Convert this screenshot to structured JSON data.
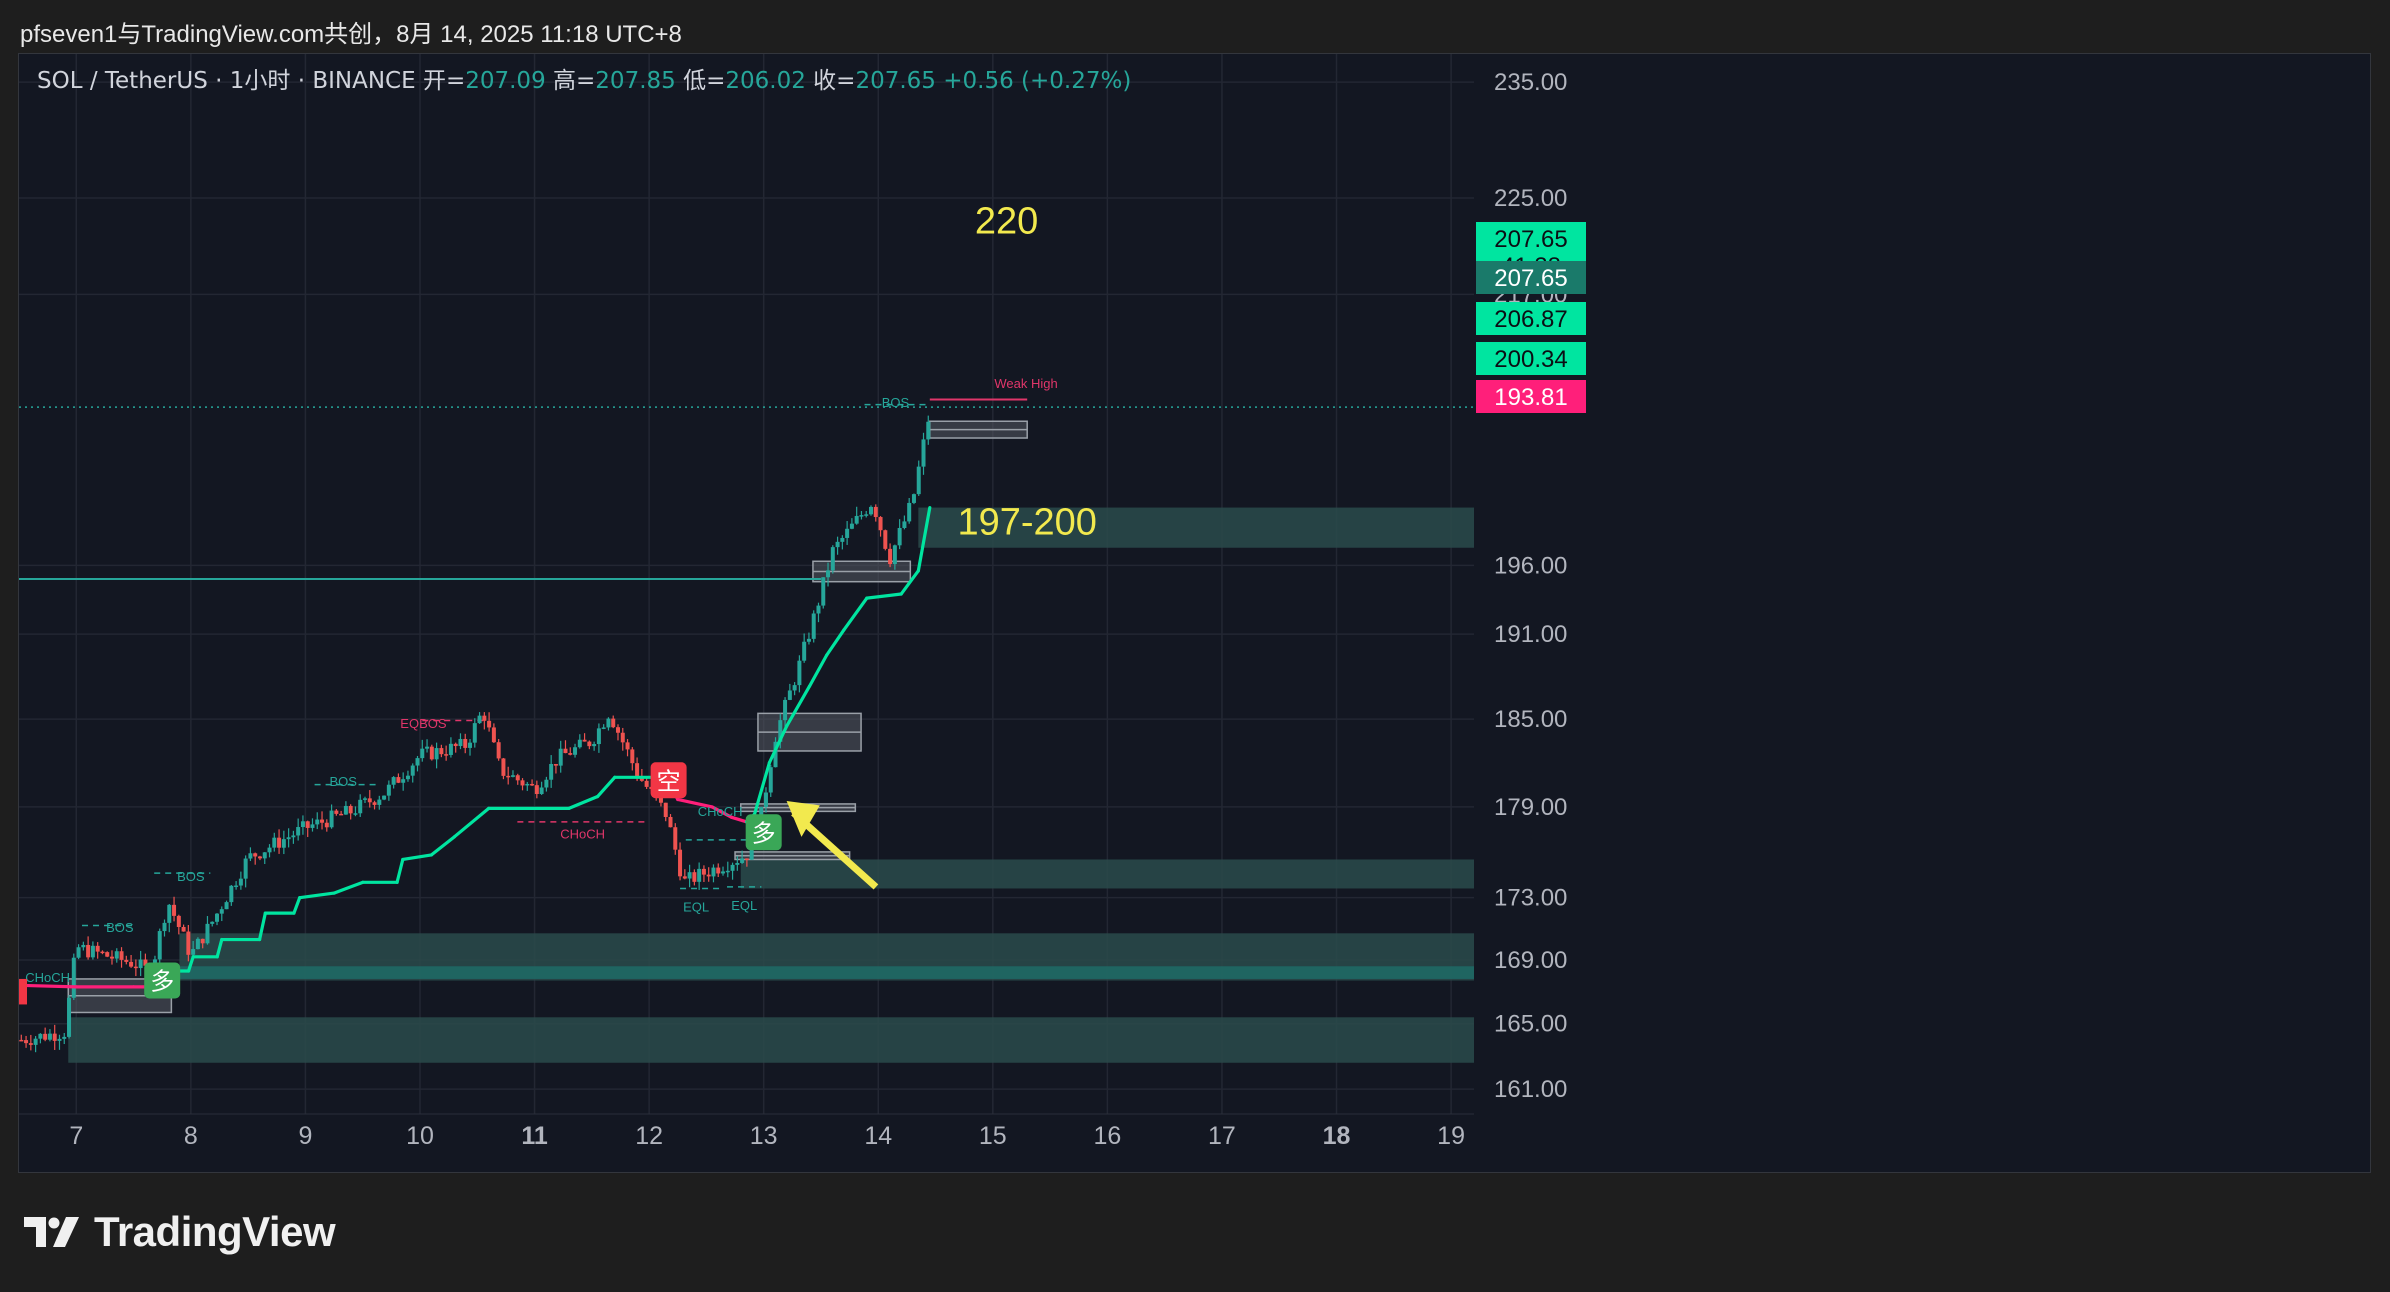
{
  "header": {
    "publish_line": "pfseven1与TradingView.com共创，8月 14, 2025 11:18 UTC+8"
  },
  "footer": {
    "brand": "TradingView"
  },
  "chart_data": {
    "type": "candlestick",
    "symbol_line": {
      "symbol": "SOL / TetherUS · 1小时 · BINANCE",
      "open_label": "开=",
      "open": "207.09",
      "high_label": "高=",
      "high": "207.85",
      "low_label": "低=",
      "low": "206.02",
      "close_label": "收=",
      "close": "207.65",
      "change": "+0.56 (+0.27%)"
    },
    "x_axis": {
      "ticks": [
        "7",
        "8",
        "9",
        "10",
        "11",
        "12",
        "13",
        "14",
        "15",
        "16",
        "17",
        "18",
        "19"
      ],
      "bold_ticks": [
        "11",
        "18"
      ],
      "range": [
        6.5,
        19.2
      ]
    },
    "y_axis": {
      "ticks": [
        "235.00",
        "225.00",
        "217.00",
        "196.00",
        "191.00",
        "185.00",
        "179.00",
        "173.00",
        "169.00",
        "165.00",
        "161.00"
      ],
      "range": [
        159.5,
        237.5
      ],
      "scale": "log"
    },
    "price_tags": [
      {
        "value": 207.65,
        "text": "207.65",
        "sub": "41:38",
        "color": "#00e5a0",
        "text_color": "#0b0e14"
      },
      {
        "value": 207.65,
        "text": "207.65",
        "color": "#1a7a6a",
        "text_color": "#ffffff"
      },
      {
        "value": 206.87,
        "text": "206.87",
        "color": "#00e5a0",
        "text_color": "#0b0e14"
      },
      {
        "value": 200.34,
        "text": "200.34",
        "color": "#00e5a0",
        "text_color": "#0b0e14"
      },
      {
        "value": 193.81,
        "text": "193.81",
        "color": "#ff1f7a",
        "text_color": "#ffffff"
      }
    ],
    "annotations": [
      {
        "text": "220",
        "x": 15.12,
        "y": 222.0,
        "color": "#f2e94e",
        "size": 38
      },
      {
        "text": "197-200",
        "x": 15.3,
        "y": 198.3,
        "color": "#f2e94e",
        "size": 38
      },
      {
        "text": "Weak High",
        "x": 15.29,
        "y": 209.5,
        "color": "#e0366a",
        "size": 13
      },
      {
        "text": "BOS",
        "x": 7.38,
        "y": 170.8,
        "color": "#26a69a",
        "size": 13
      },
      {
        "text": "BOS",
        "x": 8.0,
        "y": 174.1,
        "color": "#26a69a",
        "size": 13
      },
      {
        "text": "BOS",
        "x": 9.33,
        "y": 180.4,
        "color": "#26a69a",
        "size": 13
      },
      {
        "text": "EQBOS",
        "x": 10.03,
        "y": 184.4,
        "color": "#e0366a",
        "size": 13
      },
      {
        "text": "CHoCH",
        "x": 11.42,
        "y": 176.9,
        "color": "#e0366a",
        "size": 13
      },
      {
        "text": "CHoCH",
        "x": 12.62,
        "y": 178.4,
        "color": "#26a69a",
        "size": 13
      },
      {
        "text": "EQL",
        "x": 12.41,
        "y": 172.1,
        "color": "#26a69a",
        "size": 13
      },
      {
        "text": "EQL",
        "x": 12.83,
        "y": 172.2,
        "color": "#26a69a",
        "size": 13
      },
      {
        "text": "BOS",
        "x": 14.15,
        "y": 208.0,
        "color": "#26a69a",
        "size": 13
      },
      {
        "text": "CHoCH",
        "x": 6.75,
        "y": 167.6,
        "color": "#26a69a",
        "size": 13
      }
    ],
    "signals": [
      {
        "text": "多",
        "x": 7.75,
        "y": 167.7,
        "color": "#3aa757"
      },
      {
        "text": "空",
        "x": 12.17,
        "y": 180.8,
        "color": "#f23645"
      },
      {
        "text": "多",
        "x": 13.0,
        "y": 177.3,
        "color": "#3aa757"
      }
    ],
    "zones": [
      {
        "x1": 14.35,
        "x2": 19.2,
        "y1": 197.3,
        "y2": 200.3,
        "color": "#2a4b4b"
      },
      {
        "x1": 12.8,
        "x2": 19.2,
        "y1": 173.6,
        "y2": 175.5,
        "color": "#2a4b4b"
      },
      {
        "x1": 7.9,
        "x2": 19.2,
        "y1": 167.7,
        "y2": 170.7,
        "color": "#2a4b4b"
      },
      {
        "x1": 7.9,
        "x2": 19.2,
        "y1": 167.8,
        "y2": 168.6,
        "color": "#1f6b66"
      },
      {
        "x1": 6.93,
        "x2": 19.2,
        "y1": 162.6,
        "y2": 165.4,
        "color": "#2a4b4b"
      },
      {
        "x1": 6.93,
        "x2": 7.83,
        "y1": 165.7,
        "y2": 167.8,
        "color": "#555a63"
      },
      {
        "x1": 12.95,
        "x2": 13.85,
        "y1": 182.8,
        "y2": 185.4,
        "color": "#555a63"
      },
      {
        "x1": 12.8,
        "x2": 13.8,
        "y1": 178.7,
        "y2": 179.2,
        "color": "#555a63"
      },
      {
        "x1": 12.75,
        "x2": 13.75,
        "y1": 175.5,
        "y2": 176.0,
        "color": "#555a63"
      },
      {
        "x1": 13.43,
        "x2": 14.28,
        "y1": 194.8,
        "y2": 196.3,
        "color": "#555a63"
      },
      {
        "x1": 14.45,
        "x2": 15.3,
        "y1": 205.6,
        "y2": 206.9,
        "color": "#555a63"
      }
    ],
    "levels": [
      {
        "x1": 6.5,
        "x2": 13.5,
        "y": 195.0,
        "color": "#26a69a",
        "width": 2
      },
      {
        "x1": 6.5,
        "x2": 19.2,
        "y": 208.0,
        "color": "#26a69a",
        "width": 1.5,
        "dash": "2,4"
      },
      {
        "x1": 14.45,
        "x2": 15.3,
        "y": 208.6,
        "color": "#e0366a",
        "width": 2
      }
    ],
    "structure_lines": [
      {
        "x1": 7.05,
        "x2": 7.52,
        "y": 171.2,
        "color": "#26a69a"
      },
      {
        "x1": 7.68,
        "x2": 8.17,
        "y": 174.6,
        "color": "#26a69a"
      },
      {
        "x1": 9.08,
        "x2": 9.62,
        "y": 180.5,
        "color": "#26a69a"
      },
      {
        "x1": 10.02,
        "x2": 10.55,
        "y": 184.9,
        "color": "#e0366a"
      },
      {
        "x1": 10.85,
        "x2": 11.98,
        "y": 178.0,
        "color": "#e0366a"
      },
      {
        "x1": 12.32,
        "x2": 12.98,
        "y": 176.8,
        "color": "#26a69a"
      },
      {
        "x1": 12.27,
        "x2": 12.63,
        "y": 173.6,
        "color": "#26a69a"
      },
      {
        "x1": 12.68,
        "x2": 12.98,
        "y": 173.7,
        "color": "#26a69a"
      },
      {
        "x1": 13.88,
        "x2": 14.43,
        "y": 208.2,
        "color": "#26a69a"
      }
    ],
    "trail": [
      {
        "x": 6.5,
        "y": 167.4,
        "color": "#ff1f7a"
      },
      {
        "x": 7.0,
        "y": 167.3,
        "color": "#ff1f7a"
      },
      {
        "x": 7.5,
        "y": 167.3,
        "color": "#ff1f7a"
      },
      {
        "x": 7.73,
        "y": 167.3,
        "color": "#ff1f7a"
      },
      {
        "x": 7.77,
        "y": 168.3,
        "color": "#00e5a0"
      },
      {
        "x": 7.98,
        "y": 168.3,
        "color": "#00e5a0"
      },
      {
        "x": 8.02,
        "y": 169.2,
        "color": "#00e5a0"
      },
      {
        "x": 8.23,
        "y": 169.2,
        "color": "#00e5a0"
      },
      {
        "x": 8.27,
        "y": 170.3,
        "color": "#00e5a0"
      },
      {
        "x": 8.6,
        "y": 170.3,
        "color": "#00e5a0"
      },
      {
        "x": 8.65,
        "y": 172.0,
        "color": "#00e5a0"
      },
      {
        "x": 8.9,
        "y": 172.0,
        "color": "#00e5a0"
      },
      {
        "x": 8.95,
        "y": 173.0,
        "color": "#00e5a0"
      },
      {
        "x": 9.25,
        "y": 173.3,
        "color": "#00e5a0"
      },
      {
        "x": 9.5,
        "y": 174.0,
        "color": "#00e5a0"
      },
      {
        "x": 9.8,
        "y": 174.0,
        "color": "#00e5a0"
      },
      {
        "x": 9.85,
        "y": 175.5,
        "color": "#00e5a0"
      },
      {
        "x": 10.1,
        "y": 175.8,
        "color": "#00e5a0"
      },
      {
        "x": 10.3,
        "y": 177.0,
        "color": "#00e5a0"
      },
      {
        "x": 10.6,
        "y": 178.9,
        "color": "#00e5a0"
      },
      {
        "x": 11.3,
        "y": 178.9,
        "color": "#00e5a0"
      },
      {
        "x": 11.55,
        "y": 179.7,
        "color": "#00e5a0"
      },
      {
        "x": 11.7,
        "y": 181.0,
        "color": "#00e5a0"
      },
      {
        "x": 12.15,
        "y": 181.0,
        "color": "#00e5a0"
      },
      {
        "x": 12.25,
        "y": 179.5,
        "color": "#ff1f7a"
      },
      {
        "x": 12.55,
        "y": 179.0,
        "color": "#ff1f7a"
      },
      {
        "x": 12.72,
        "y": 178.3,
        "color": "#ff1f7a"
      },
      {
        "x": 12.85,
        "y": 178.0,
        "color": "#ff1f7a"
      },
      {
        "x": 12.92,
        "y": 178.5,
        "color": "#00e5a0"
      },
      {
        "x": 13.05,
        "y": 182.0,
        "color": "#00e5a0"
      },
      {
        "x": 13.2,
        "y": 184.5,
        "color": "#00e5a0"
      },
      {
        "x": 13.4,
        "y": 187.3,
        "color": "#00e5a0"
      },
      {
        "x": 13.55,
        "y": 189.5,
        "color": "#00e5a0"
      },
      {
        "x": 13.7,
        "y": 191.3,
        "color": "#00e5a0"
      },
      {
        "x": 13.9,
        "y": 193.6,
        "color": "#00e5a0"
      },
      {
        "x": 14.2,
        "y": 193.9,
        "color": "#00e5a0"
      },
      {
        "x": 14.35,
        "y": 195.6,
        "color": "#00e5a0"
      },
      {
        "x": 14.45,
        "y": 200.3,
        "color": "#00e5a0"
      }
    ],
    "candles_anchor": [
      {
        "x": 6.52,
        "y": 164.0
      },
      {
        "x": 6.9,
        "y": 164.5
      },
      {
        "x": 7.0,
        "y": 169.8
      },
      {
        "x": 7.5,
        "y": 168.8
      },
      {
        "x": 7.65,
        "y": 168.2
      },
      {
        "x": 7.8,
        "y": 172.8
      },
      {
        "x": 8.0,
        "y": 169.3
      },
      {
        "x": 8.2,
        "y": 171.6
      },
      {
        "x": 8.5,
        "y": 175.6
      },
      {
        "x": 9.0,
        "y": 177.6
      },
      {
        "x": 9.4,
        "y": 178.7
      },
      {
        "x": 9.7,
        "y": 180.0
      },
      {
        "x": 10.0,
        "y": 182.5
      },
      {
        "x": 10.4,
        "y": 183.2
      },
      {
        "x": 10.55,
        "y": 185.6
      },
      {
        "x": 10.7,
        "y": 181.5
      },
      {
        "x": 11.0,
        "y": 180.2
      },
      {
        "x": 11.2,
        "y": 182.3
      },
      {
        "x": 11.5,
        "y": 183.5
      },
      {
        "x": 11.65,
        "y": 185.5
      },
      {
        "x": 11.9,
        "y": 181.2
      },
      {
        "x": 12.15,
        "y": 178.5
      },
      {
        "x": 12.3,
        "y": 174.0
      },
      {
        "x": 12.6,
        "y": 175.0
      },
      {
        "x": 12.85,
        "y": 175.8
      },
      {
        "x": 12.98,
        "y": 178.5
      },
      {
        "x": 13.1,
        "y": 183.8
      },
      {
        "x": 13.3,
        "y": 188.5
      },
      {
        "x": 13.45,
        "y": 192.5
      },
      {
        "x": 13.6,
        "y": 197.0
      },
      {
        "x": 13.8,
        "y": 199.2
      },
      {
        "x": 13.95,
        "y": 200.8
      },
      {
        "x": 14.1,
        "y": 196.5
      },
      {
        "x": 14.3,
        "y": 200.8
      },
      {
        "x": 14.45,
        "y": 207.65
      }
    ]
  }
}
